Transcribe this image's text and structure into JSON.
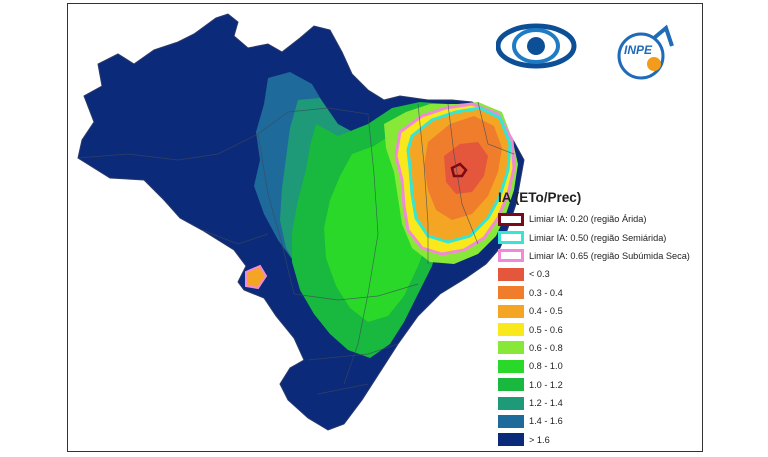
{
  "map": {
    "title": "IA (ETo/Prec)",
    "threshold_items": [
      {
        "label": "Limiar IA: 0.20 (região Árida)",
        "color": "#7a0a18"
      },
      {
        "label": "Limiar IA: 0.50 (região Semiárida)",
        "color": "#36e6d2"
      },
      {
        "label": "Limiar IA: 0.65 (região Subúmida Seca)",
        "color": "#f08ad8"
      }
    ],
    "class_items": [
      {
        "label": "< 0.3",
        "color": "#e4573c"
      },
      {
        "label": "0.3 - 0.4",
        "color": "#ef7d2c"
      },
      {
        "label": "0.4 - 0.5",
        "color": "#f4a524"
      },
      {
        "label": "0.5 - 0.6",
        "color": "#f8e81c"
      },
      {
        "label": "0.6 - 0.8",
        "color": "#88e838"
      },
      {
        "label": "0.8 - 1.0",
        "color": "#2ad82a"
      },
      {
        "label": "1.0 - 1.2",
        "color": "#19b83e"
      },
      {
        "label": "1.2 - 1.4",
        "color": "#1e9a78"
      },
      {
        "label": "1.4 - 1.6",
        "color": "#1e6a9a"
      },
      {
        "label": "> 1.6",
        "color": "#0c2a7a"
      }
    ],
    "logos": {
      "cptec_icon": "eye-logo-icon",
      "inpe_text": "INPE"
    }
  }
}
